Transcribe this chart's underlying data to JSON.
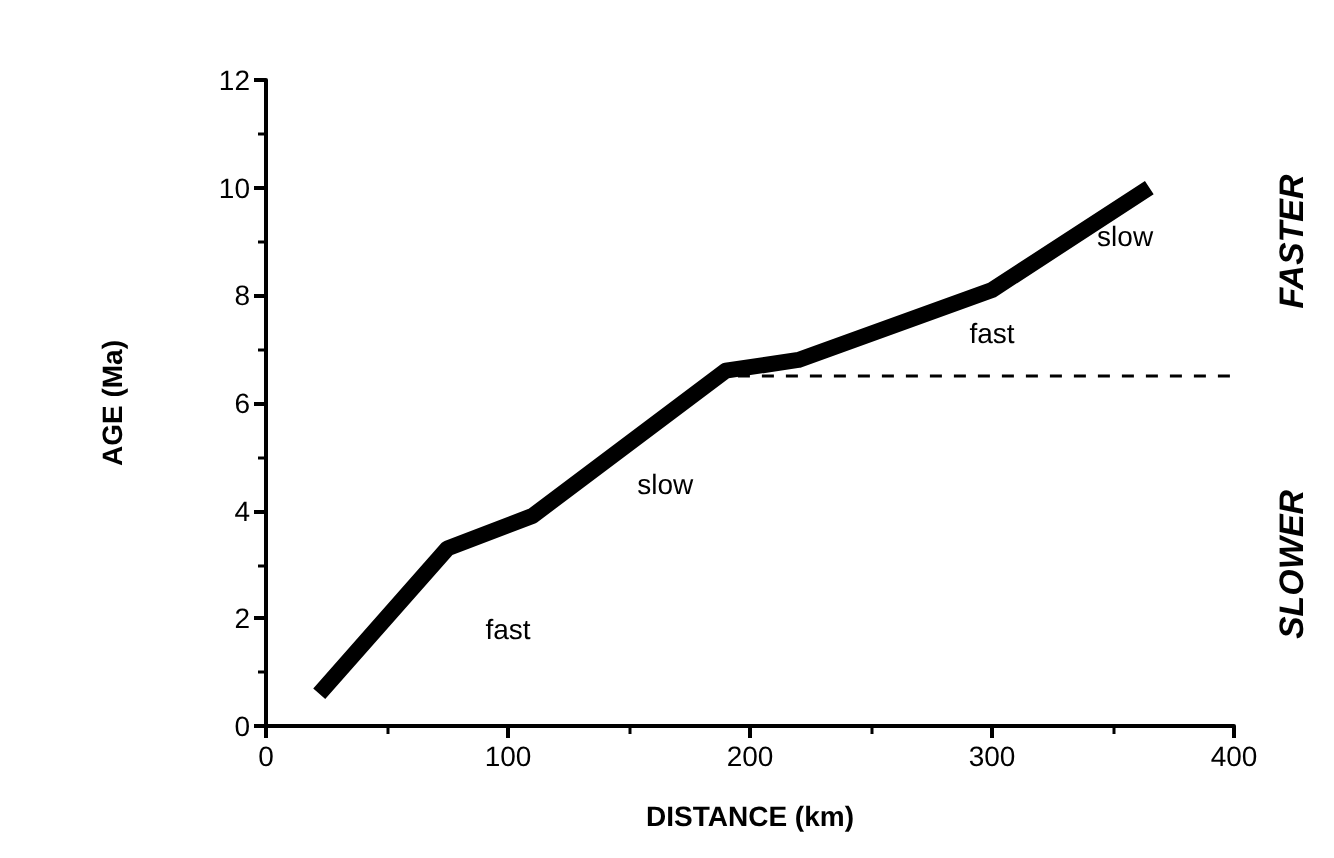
{
  "chart_data": {
    "type": "line",
    "xlabel": "DISTANCE (km)",
    "ylabel": "AGE (Ma)",
    "series": [
      {
        "color": "#000000",
        "line_style": "solid",
        "x": [
          22,
          75,
          110,
          190,
          220,
          300,
          365
        ],
        "values": [
          0.6,
          3.3,
          3.9,
          6.6,
          6.8,
          8.1,
          10.0
        ]
      },
      {
        "color": "#000000",
        "line_style": "dashed",
        "x": [
          195,
          400
        ],
        "values": [
          6.5,
          6.5
        ]
      }
    ],
    "xlim": [
      0,
      400
    ],
    "xticks": [
      0,
      100,
      200,
      300,
      400
    ],
    "ylim": [
      0,
      12
    ],
    "yticks": [
      0,
      2,
      4,
      6,
      8,
      10,
      12
    ],
    "grid": false,
    "marker": "none",
    "annotations": [
      "fast",
      "slow",
      "fast",
      "slow",
      "FASTER",
      "SLOWER"
    ]
  }
}
